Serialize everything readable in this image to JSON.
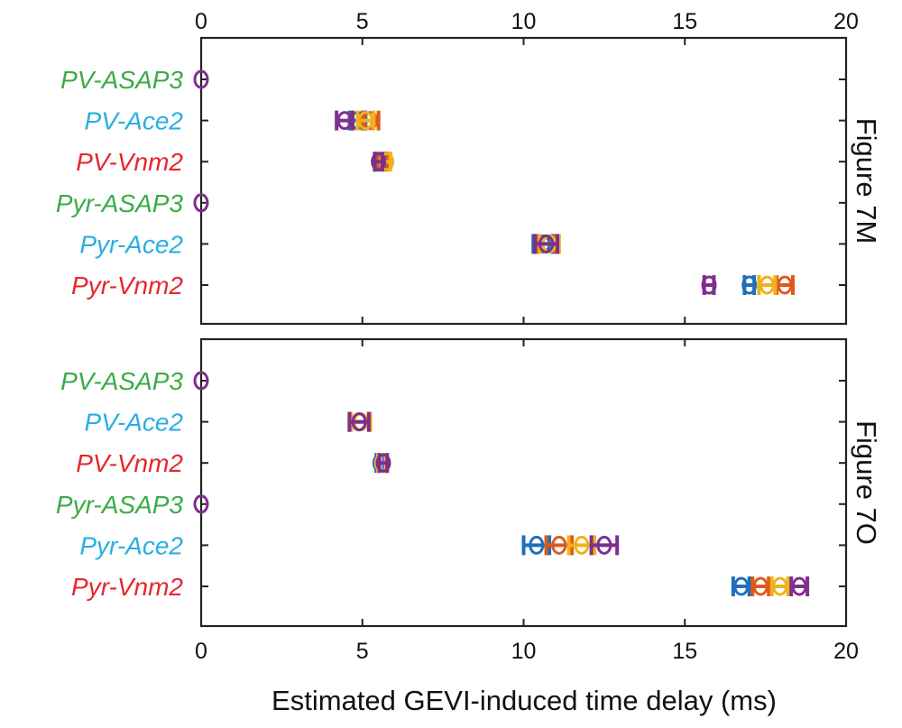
{
  "chart_data": {
    "type": "errorbar",
    "xlabel": "Estimated GEVI-induced time delay (ms)",
    "xlim": [
      0,
      20
    ],
    "xticks": [
      "0",
      "5",
      "10",
      "15",
      "20"
    ],
    "series_colors": [
      "#1f6fba",
      "#dc5a1e",
      "#f0b21c",
      "#7e2f8e"
    ],
    "category_colors": {
      "ASAP3": "#3aab47",
      "Ace2": "#29aee3",
      "Vnm2": "#e8262b"
    },
    "panels": [
      {
        "label": "Figure 7M",
        "categories": [
          {
            "name": "PV-ASAP3",
            "color_key": "ASAP3",
            "points": [
              {
                "series": 3,
                "x": 0,
                "err": 0
              }
            ]
          },
          {
            "name": "PV-Ace2",
            "color_key": "Ace2",
            "points": [
              {
                "series": 0,
                "x": 4.85,
                "err": 0.25
              },
              {
                "series": 1,
                "x": 5.25,
                "err": 0.25
              },
              {
                "series": 2,
                "x": 5.1,
                "err": 0.25
              },
              {
                "series": 3,
                "x": 4.45,
                "err": 0.25
              }
            ]
          },
          {
            "name": "PV-Vnm2",
            "color_key": "Vnm2",
            "points": [
              {
                "series": 0,
                "x": 5.55,
                "err": 0.12
              },
              {
                "series": 1,
                "x": 5.65,
                "err": 0.12
              },
              {
                "series": 2,
                "x": 5.75,
                "err": 0.12
              },
              {
                "series": 3,
                "x": 5.5,
                "err": 0.12
              }
            ]
          },
          {
            "name": "Pyr-ASAP3",
            "color_key": "ASAP3",
            "points": [
              {
                "series": 3,
                "x": 0,
                "err": 0
              }
            ]
          },
          {
            "name": "Pyr-Ace2",
            "color_key": "Ace2",
            "points": [
              {
                "series": 0,
                "x": 10.6,
                "err": 0.3
              },
              {
                "series": 1,
                "x": 10.7,
                "err": 0.3
              },
              {
                "series": 2,
                "x": 10.8,
                "err": 0.3
              },
              {
                "series": 3,
                "x": 10.7,
                "err": 0.35
              }
            ]
          },
          {
            "name": "Pyr-Vnm2",
            "color_key": "Vnm2",
            "points": [
              {
                "series": 0,
                "x": 17.0,
                "err": 0.15
              },
              {
                "series": 1,
                "x": 18.1,
                "err": 0.25
              },
              {
                "series": 2,
                "x": 17.55,
                "err": 0.25
              },
              {
                "series": 3,
                "x": 15.75,
                "err": 0.15
              }
            ]
          }
        ]
      },
      {
        "label": "Figure 7O",
        "categories": [
          {
            "name": "PV-ASAP3",
            "color_key": "ASAP3",
            "points": [
              {
                "series": 3,
                "x": 0,
                "err": 0
              }
            ]
          },
          {
            "name": "PV-Ace2",
            "color_key": "Ace2",
            "points": [
              {
                "series": 0,
                "x": 4.9,
                "err": 0.3
              },
              {
                "series": 1,
                "x": 4.9,
                "err": 0.3
              },
              {
                "series": 2,
                "x": 4.95,
                "err": 0.3
              },
              {
                "series": 3,
                "x": 4.9,
                "err": 0.3
              }
            ]
          },
          {
            "name": "PV-Vnm2",
            "color_key": "Vnm2",
            "points": [
              {
                "series": 0,
                "x": 5.55,
                "err": 0.12
              },
              {
                "series": 1,
                "x": 5.6,
                "err": 0.12
              },
              {
                "series": 2,
                "x": 5.6,
                "err": 0.12
              },
              {
                "series": 3,
                "x": 5.65,
                "err": 0.12
              }
            ]
          },
          {
            "name": "Pyr-ASAP3",
            "color_key": "ASAP3",
            "points": [
              {
                "series": 3,
                "x": 0,
                "err": 0
              }
            ]
          },
          {
            "name": "Pyr-Ace2",
            "color_key": "Ace2",
            "points": [
              {
                "series": 0,
                "x": 10.4,
                "err": 0.4
              },
              {
                "series": 1,
                "x": 11.1,
                "err": 0.4
              },
              {
                "series": 2,
                "x": 11.8,
                "err": 0.4
              },
              {
                "series": 3,
                "x": 12.5,
                "err": 0.4
              }
            ]
          },
          {
            "name": "Pyr-Vnm2",
            "color_key": "Vnm2",
            "points": [
              {
                "series": 0,
                "x": 16.75,
                "err": 0.25
              },
              {
                "series": 1,
                "x": 17.35,
                "err": 0.25
              },
              {
                "series": 2,
                "x": 17.95,
                "err": 0.25
              },
              {
                "series": 3,
                "x": 18.55,
                "err": 0.25
              }
            ]
          }
        ]
      }
    ]
  }
}
